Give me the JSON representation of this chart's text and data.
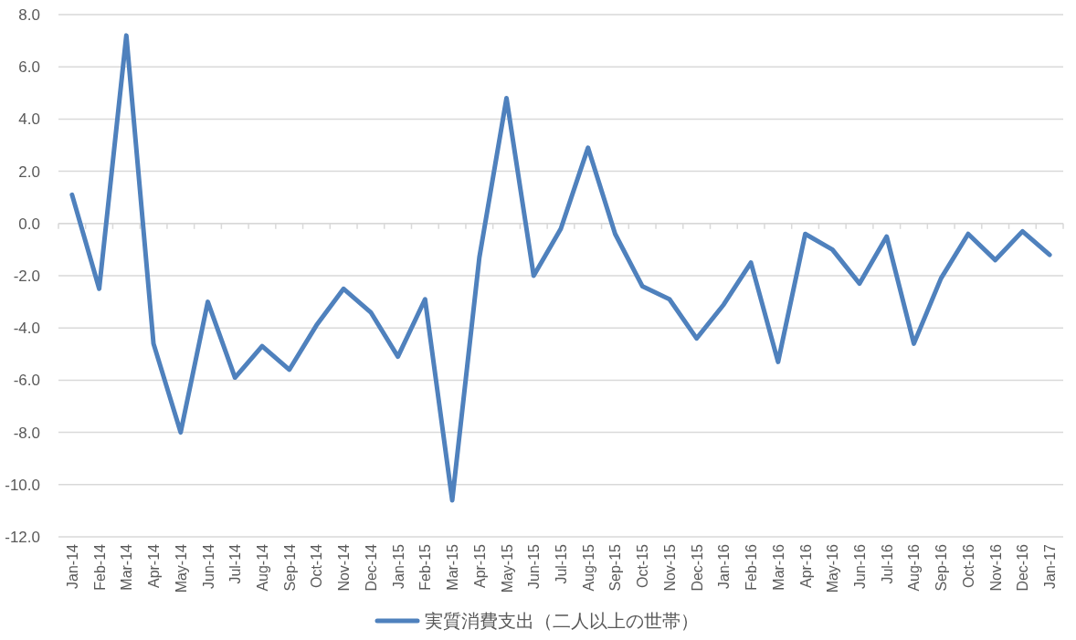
{
  "chart_data": {
    "type": "line",
    "categories": [
      "Jan-14",
      "Feb-14",
      "Mar-14",
      "Apr-14",
      "May-14",
      "Jun-14",
      "Jul-14",
      "Aug-14",
      "Sep-14",
      "Oct-14",
      "Nov-14",
      "Dec-14",
      "Jan-15",
      "Feb-15",
      "Mar-15",
      "Apr-15",
      "May-15",
      "Jun-15",
      "Jul-15",
      "Aug-15",
      "Sep-15",
      "Oct-15",
      "Nov-15",
      "Dec-15",
      "Jan-16",
      "Feb-16",
      "Mar-16",
      "Apr-16",
      "May-16",
      "Jun-16",
      "Jul-16",
      "Aug-16",
      "Sep-16",
      "Oct-16",
      "Nov-16",
      "Dec-16",
      "Jan-17"
    ],
    "series": [
      {
        "name": "実質消費支出（二人以上の世帯）",
        "color": "#4f81bd",
        "values": [
          1.1,
          -2.5,
          7.2,
          -4.6,
          -8.0,
          -3.0,
          -5.9,
          -4.7,
          -5.6,
          -3.9,
          -2.5,
          -3.4,
          -5.1,
          -2.9,
          -10.6,
          -1.3,
          4.8,
          -2.0,
          -0.2,
          2.9,
          -0.4,
          -2.4,
          -2.9,
          -4.4,
          -3.1,
          -1.5,
          -5.3,
          -0.4,
          -1.0,
          -2.3,
          -0.5,
          -4.6,
          -2.1,
          -0.4,
          -1.4,
          -0.3,
          -1.2
        ]
      }
    ],
    "ylim": [
      -12,
      8
    ],
    "yticks": [
      {
        "value": -12,
        "label": "-12.0"
      },
      {
        "value": -10,
        "label": "-10.0"
      },
      {
        "value": -8,
        "label": "-8.0"
      },
      {
        "value": -6,
        "label": "-6.0"
      },
      {
        "value": -4,
        "label": "-4.0"
      },
      {
        "value": -2,
        "label": "-2.0"
      },
      {
        "value": 0,
        "label": "0.0"
      },
      {
        "value": 2,
        "label": "2.0"
      },
      {
        "value": 4,
        "label": "4.0"
      },
      {
        "value": 6,
        "label": "6.0"
      },
      {
        "value": 8,
        "label": "8.0"
      }
    ],
    "grid": "y",
    "legend": "bottom"
  }
}
